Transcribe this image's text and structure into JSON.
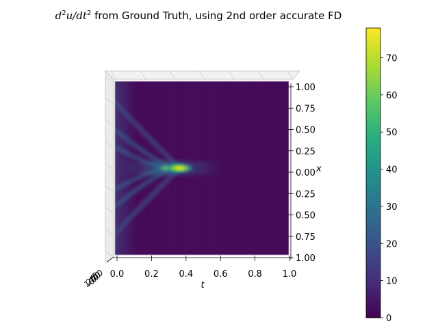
{
  "chart_data": {
    "type": "heatmap",
    "title": {
      "part1": "d",
      "part2": "2",
      "part3": "u/dt",
      "part4": "2",
      "part5": " from Ground Truth, using 2nd order accurate FD"
    },
    "xlabel": "t",
    "ylabel": "x",
    "xlim": [
      0.0,
      1.0
    ],
    "ylim": [
      -1.0,
      1.0
    ],
    "x_ticks": [
      "0.0",
      "0.2",
      "0.4",
      "0.6",
      "0.8",
      "1.0"
    ],
    "y_tick_labels": [
      "1.00",
      "0.75",
      "0.50",
      "0.25",
      "0.00",
      "0.25",
      "0.50",
      "0.75",
      "1.00"
    ],
    "y_tick_values": [
      1.0,
      0.75,
      0.5,
      0.25,
      0.0,
      -0.25,
      -0.5,
      -0.75,
      -1.0
    ],
    "colormap": "viridis",
    "colorbar": {
      "ticks": [
        "0",
        "10",
        "20",
        "30",
        "40",
        "50",
        "60",
        "70"
      ],
      "tick_values": [
        0,
        10,
        20,
        30,
        40,
        50,
        60,
        70
      ],
      "range": [
        0,
        78
      ]
    },
    "z_tick_labels": [
      "10",
      "20",
      "40",
      "60",
      "80"
    ],
    "features": [
      {
        "name": "peak",
        "t": 0.37,
        "x": 0.0,
        "value": 78
      },
      {
        "name": "secondary",
        "t": 0.3,
        "x": 0.0,
        "value": 50
      },
      {
        "name": "wave-arms",
        "t_range": [
          0.0,
          0.45
        ],
        "x_range": [
          -0.75,
          0.75
        ],
        "value": 12
      },
      {
        "name": "left-edge",
        "t": 0.0,
        "value": 10
      },
      {
        "name": "background",
        "value": 3
      }
    ],
    "grid": true
  }
}
